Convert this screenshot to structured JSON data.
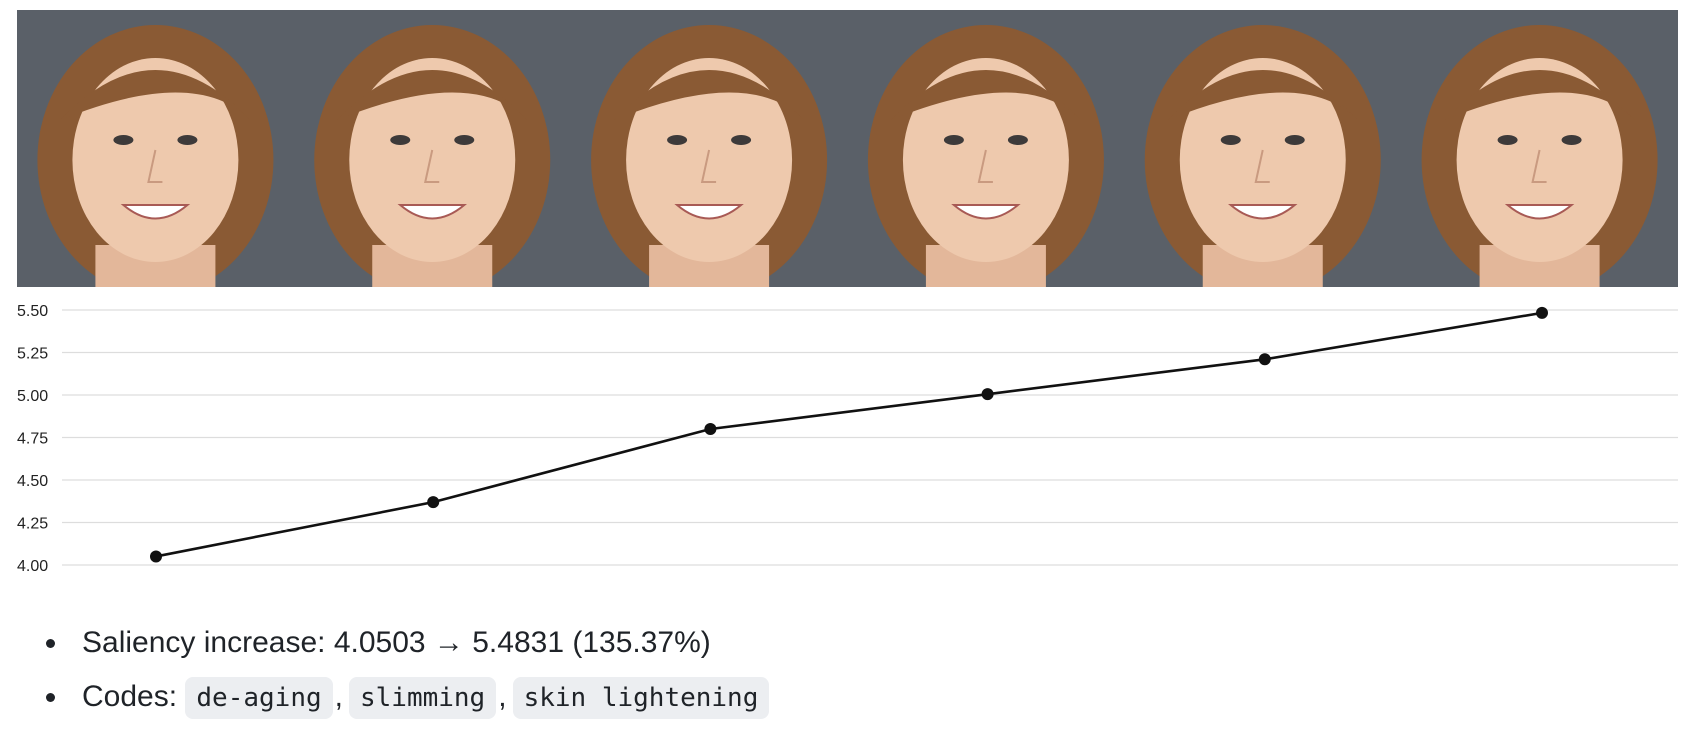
{
  "colors": {
    "line": "#111111",
    "grid": "#dddddd",
    "code_bg": "#eceef1",
    "photo_bg": "#5a6068",
    "hair": "#8a5a34",
    "skin": "#eec9ad"
  },
  "image_strip": {
    "frames": [
      {
        "icon": "face-photo-icon"
      },
      {
        "icon": "face-photo-icon"
      },
      {
        "icon": "face-photo-icon"
      },
      {
        "icon": "face-photo-icon"
      },
      {
        "icon": "face-photo-icon"
      },
      {
        "icon": "face-photo-icon"
      }
    ]
  },
  "chart_data": {
    "type": "line",
    "x": [
      1,
      2,
      3,
      4,
      5,
      6
    ],
    "series": [
      {
        "values": [
          4.0503,
          4.37,
          4.8,
          5.005,
          5.21,
          5.4831
        ]
      }
    ],
    "ylim": [
      4.0,
      5.5
    ],
    "yticks": [
      "4.00",
      "4.25",
      "4.50",
      "4.75",
      "5.00",
      "5.25",
      "5.50"
    ],
    "grid": "horizontal",
    "legend": "none"
  },
  "summary": {
    "saliency_label": "Saliency increase:",
    "saliency_value": "4.0503 → 5.4831 (135.37%)",
    "codes_label": "Codes:",
    "codes": [
      "de-aging",
      "slimming",
      "skin lightening"
    ],
    "separator": ","
  }
}
